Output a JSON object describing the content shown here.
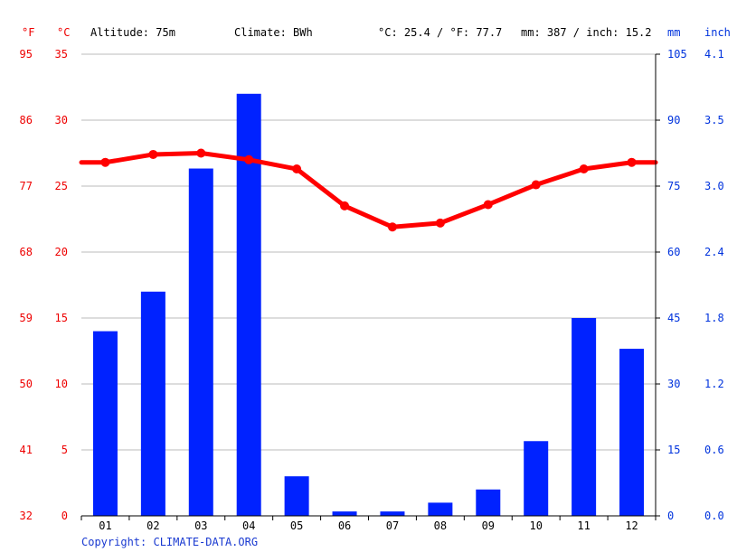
{
  "header": {
    "unit_f": "°F",
    "unit_c": "°C",
    "altitude": "Altitude: 75m",
    "climate": "Climate: BWh",
    "averages": "°C: 25.4 / °F: 77.7",
    "precip_totals": "mm: 387 / inch: 15.2",
    "unit_mm": "mm",
    "unit_inch": "inch"
  },
  "copyright": "Copyright: CLIMATE-DATA.ORG",
  "colors": {
    "temperature": "#ff0000",
    "precipitation": "#0022ff",
    "temp_axis": "#ee0000",
    "precip_axis": "#0033dd",
    "grid": "#bbbbbb"
  },
  "chart_data": {
    "type": "bar",
    "categories": [
      "01",
      "02",
      "03",
      "04",
      "05",
      "06",
      "07",
      "08",
      "09",
      "10",
      "11",
      "12"
    ],
    "series": [
      {
        "type": "bar",
        "axis": "right",
        "unit": "mm",
        "values": [
          42,
          51,
          79,
          96,
          9,
          1,
          1,
          3,
          6,
          17,
          45,
          38
        ]
      },
      {
        "type": "line",
        "axis": "left",
        "unit": "°C",
        "values": [
          26.8,
          27.4,
          27.5,
          27.0,
          26.3,
          23.5,
          21.9,
          22.2,
          23.6,
          25.1,
          26.3,
          26.8
        ]
      }
    ],
    "axes": {
      "celsius": {
        "ticks": [
          "0",
          "5",
          "10",
          "15",
          "20",
          "25",
          "30",
          "35"
        ],
        "range": [
          0,
          35
        ]
      },
      "fahrenheit": {
        "ticks": [
          "32",
          "41",
          "50",
          "59",
          "68",
          "77",
          "86",
          "95"
        ]
      },
      "mm": {
        "ticks": [
          "0",
          "15",
          "30",
          "45",
          "60",
          "75",
          "90",
          "105"
        ],
        "range": [
          0,
          105
        ]
      },
      "inch": {
        "ticks": [
          "0.0",
          "0.6",
          "1.2",
          "1.8",
          "2.4",
          "3.0",
          "3.5",
          "4.1"
        ]
      }
    },
    "grid": true
  }
}
